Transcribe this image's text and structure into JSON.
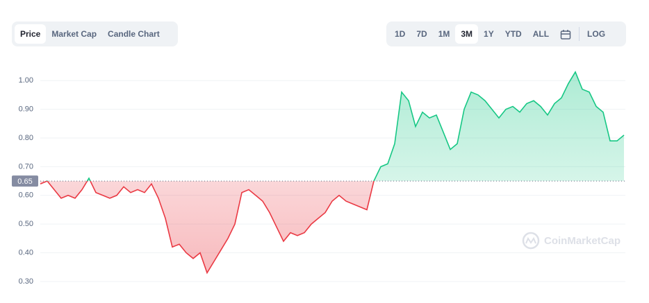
{
  "toolbar": {
    "tabs": [
      "Price",
      "Market Cap",
      "Candle Chart"
    ],
    "ranges": [
      "1D",
      "7D",
      "1M",
      "3M",
      "1Y",
      "YTD",
      "ALL"
    ],
    "scale": "LOG"
  },
  "chart_data": {
    "type": "line",
    "watermark": "CoinMarketCap",
    "values": [
      0.64,
      0.65,
      0.62,
      0.59,
      0.6,
      0.59,
      0.62,
      0.66,
      0.61,
      0.6,
      0.59,
      0.6,
      0.63,
      0.61,
      0.62,
      0.61,
      0.64,
      0.59,
      0.52,
      0.42,
      0.43,
      0.4,
      0.38,
      0.4,
      0.33,
      0.37,
      0.41,
      0.45,
      0.5,
      0.61,
      0.62,
      0.6,
      0.58,
      0.54,
      0.49,
      0.44,
      0.47,
      0.46,
      0.47,
      0.5,
      0.52,
      0.54,
      0.58,
      0.6,
      0.58,
      0.57,
      0.56,
      0.55,
      0.65,
      0.7,
      0.71,
      0.78,
      0.96,
      0.93,
      0.84,
      0.89,
      0.87,
      0.88,
      0.82,
      0.76,
      0.78,
      0.9,
      0.96,
      0.95,
      0.93,
      0.9,
      0.87,
      0.9,
      0.91,
      0.89,
      0.92,
      0.93,
      0.91,
      0.88,
      0.92,
      0.94,
      0.99,
      1.03,
      0.97,
      0.96,
      0.91,
      0.89,
      0.79,
      0.79,
      0.81
    ],
    "baseline": 0.65,
    "up_color": "#16c784",
    "down_color": "#ea3943",
    "ylim": [
      0.225,
      1.09
    ],
    "yticks": [
      {
        "value": 0.3,
        "label": "0.30"
      },
      {
        "value": 0.4,
        "label": "0.40"
      },
      {
        "value": 0.5,
        "label": "0.50"
      },
      {
        "value": 0.6,
        "label": "0.60"
      },
      {
        "value": 0.7,
        "label": "0.70"
      },
      {
        "value": 0.8,
        "label": "0.80"
      },
      {
        "value": 0.9,
        "label": "0.90"
      },
      {
        "value": 1.0,
        "label": "1.00"
      }
    ],
    "grid": true
  }
}
